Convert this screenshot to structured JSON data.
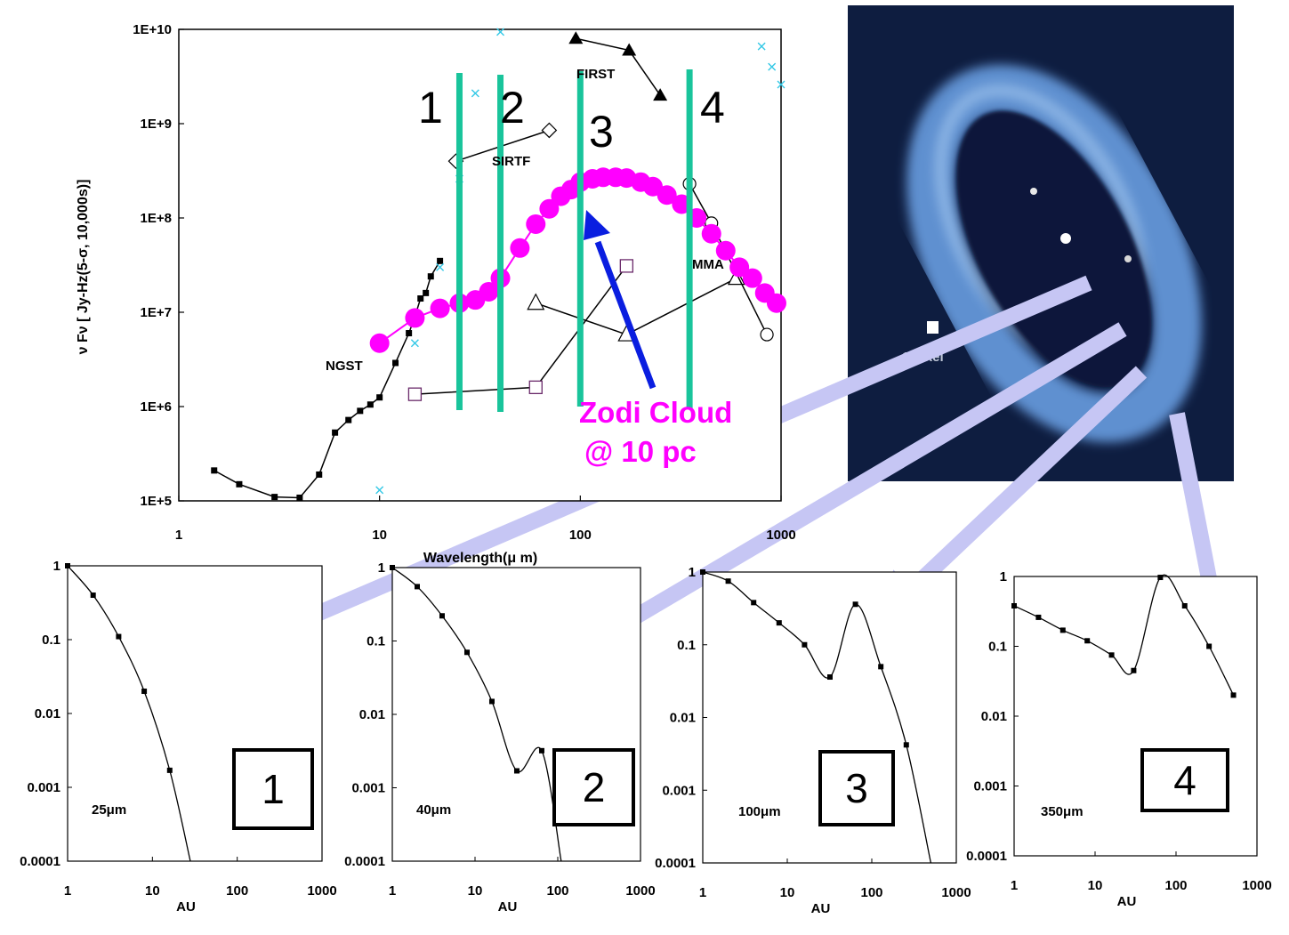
{
  "colors": {
    "band_line": "#19c49b",
    "zodi": "#ff00ff",
    "arrow_blue": "#0a1ee0",
    "pointer": "#c6c6f4",
    "cyan_marker": "#33c8e6",
    "sirtf": "#000000",
    "mma": "#000000",
    "small_panels": "#000000"
  },
  "main": {
    "ylabel": "ν Fν [ Jy-Hz(5-σ, 10,000s)]",
    "xlabel": "Wavelength(μ m)",
    "band_numbers": [
      "1",
      "2",
      "3",
      "4"
    ],
    "zodi_label_line1": "Zodi Cloud",
    "zodi_label_line2": "@ 10 pc",
    "instrument_labels": {
      "first": "FIRST",
      "sirtf": "SIRTF",
      "mma": "MMA",
      "ngst": "NGST"
    }
  },
  "image": {
    "pixel_label": "1 pixel"
  },
  "chart_data": [
    {
      "type": "line",
      "scale": "log-log",
      "xlabel": "Wavelength(μ m)",
      "ylabel": "ν Fν [ Jy-Hz(5-σ, 10,000s)]",
      "xlim": [
        1,
        1000
      ],
      "ylim": [
        100000,
        10000000000
      ],
      "x_ticks": [
        "1",
        "10",
        "100",
        "1000"
      ],
      "y_ticks": [
        "1E+5",
        "1E+6",
        "1E+7",
        "1E+8",
        "1E+9",
        "1E+10"
      ],
      "band_wavelengths": [
        25,
        40,
        100,
        350
      ],
      "series": [
        {
          "name": "NGST",
          "marker": "small-square",
          "x": [
            1.5,
            2,
            3,
            4,
            5,
            6,
            7,
            8,
            9,
            10,
            12,
            14,
            15,
            16,
            17,
            18,
            20
          ],
          "y": [
            210000,
            150000,
            110000,
            108000,
            190000,
            530000,
            720000,
            900000,
            1050000,
            1250000,
            2900000,
            6000000,
            9000000,
            14000000,
            16000000,
            24000000,
            35000000
          ]
        },
        {
          "name": "SIRTF",
          "marker": "diamond",
          "x": [
            24,
            70
          ],
          "y": [
            400000000,
            850000000
          ]
        },
        {
          "name": "FIRST",
          "marker": "filled-triangle",
          "x": [
            95,
            175,
            250
          ],
          "y": [
            8000000000,
            6000000000,
            2000000000
          ]
        },
        {
          "name": "",
          "marker": "open-square",
          "x": [
            15,
            60,
            170
          ],
          "y": [
            1350000,
            1600000,
            31000000
          ]
        },
        {
          "name": "MMA",
          "marker": "open-triangle",
          "x": [
            60,
            170,
            600
          ],
          "y": [
            12500000,
            5800000,
            23000000
          ]
        },
        {
          "name": "",
          "marker": "open-circle",
          "x": [
            350,
            450,
            850
          ],
          "y": [
            230000000,
            88000000,
            5800000
          ]
        },
        {
          "name": "",
          "marker": "cyan-x",
          "x": [
            10,
            15,
            20,
            25,
            30,
            40,
            800,
            900,
            1000
          ],
          "y": [
            130000,
            4700000,
            30000000,
            260000000,
            2100000000,
            9400000000,
            6600000000,
            4000000000,
            2600000000
          ]
        },
        {
          "name": "Zodi Cloud",
          "marker": "large-filled-circle",
          "x": [
            10,
            15,
            20,
            25,
            30,
            35,
            40,
            50,
            60,
            70,
            80,
            90,
            100,
            115,
            130,
            150,
            170,
            200,
            230,
            270,
            320,
            380,
            450,
            530,
            620,
            720,
            830,
            950
          ],
          "y": [
            4700000,
            8700000,
            11000000,
            12500000,
            13500000,
            16500000,
            23000000,
            48000000,
            86000000,
            125000000,
            170000000,
            200000000,
            240000000,
            260000000,
            270000000,
            270000000,
            265000000,
            240000000,
            215000000,
            175000000,
            140000000,
            100000000,
            68000000,
            45000000,
            30000000,
            23000000,
            16000000,
            12500000
          ]
        }
      ]
    },
    {
      "type": "line",
      "panel": "1",
      "annotation": "25μm",
      "scale": "log-log",
      "xlabel": "AU",
      "x_ticks": [
        "1",
        "10",
        "100",
        "1000"
      ],
      "y_ticks": [
        "0.0001",
        "0.001",
        "0.01",
        "0.1",
        "1"
      ],
      "xlim": [
        1,
        1000
      ],
      "ylim": [
        0.0001,
        1
      ],
      "x": [
        1,
        2,
        4,
        8,
        16,
        28
      ],
      "y": [
        1,
        0.4,
        0.11,
        0.02,
        0.0017,
        0.0001
      ],
      "marked_points": 5
    },
    {
      "type": "line",
      "panel": "2",
      "annotation": "40μm",
      "scale": "log-log",
      "xlabel": "AU",
      "x_ticks": [
        "1",
        "10",
        "100",
        "1000"
      ],
      "y_ticks": [
        "0.0001",
        "0.001",
        "0.01",
        "0.1",
        "1"
      ],
      "xlim": [
        1,
        1000
      ],
      "ylim": [
        0.0001,
        1
      ],
      "x": [
        1,
        2,
        4,
        8,
        16,
        32,
        64,
        110
      ],
      "y": [
        1,
        0.55,
        0.22,
        0.07,
        0.015,
        0.0017,
        0.0032,
        0.0001
      ],
      "marked_points": 7
    },
    {
      "type": "line",
      "panel": "3",
      "annotation": "100μm",
      "scale": "log-log",
      "xlabel": "AU",
      "x_ticks": [
        "1",
        "10",
        "100",
        "1000"
      ],
      "y_ticks": [
        "0.0001",
        "0.001",
        "0.01",
        "0.1",
        "1"
      ],
      "xlim": [
        1,
        1000
      ],
      "ylim": [
        0.0001,
        1
      ],
      "x": [
        1,
        2,
        4,
        8,
        16,
        32,
        64,
        128,
        256,
        500
      ],
      "y": [
        1,
        0.75,
        0.38,
        0.2,
        0.1,
        0.036,
        0.36,
        0.05,
        0.0042,
        0.0001
      ],
      "marked_points": 9
    },
    {
      "type": "line",
      "panel": "4",
      "annotation": "350μm",
      "scale": "log-log",
      "xlabel": "AU",
      "x_ticks": [
        "1",
        "10",
        "100",
        "1000"
      ],
      "y_ticks": [
        "0.0001",
        "0.001",
        "0.01",
        "0.1",
        "1"
      ],
      "y_tick_display": [
        "0.0001",
        "0.001",
        "0.01",
        "0.1",
        "1"
      ],
      "xlim": [
        1,
        1000
      ],
      "ylim": [
        0.0001,
        1
      ],
      "x": [
        1,
        2,
        4,
        8,
        16,
        30,
        64,
        128,
        256,
        512
      ],
      "y": [
        0.38,
        0.26,
        0.17,
        0.12,
        0.075,
        0.045,
        0.97,
        0.38,
        0.1,
        0.02
      ],
      "marked_points": 10
    }
  ]
}
